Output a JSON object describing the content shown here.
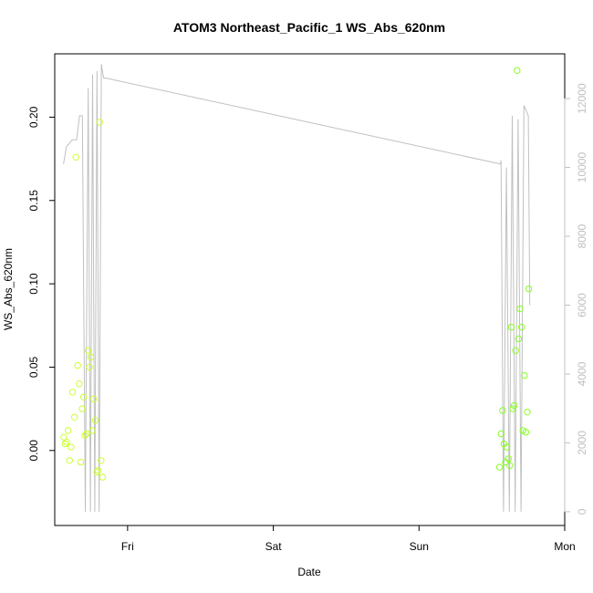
{
  "chart_data": {
    "type": "scatter",
    "title": "ATOM3 Northeast_Pacific_1 WS_Abs_620nm",
    "xlabel": "Date",
    "ylabel": "WS_Abs_620nm",
    "xlim": [
      0,
      3.5
    ],
    "ylim": [
      -0.045,
      0.238
    ],
    "x_ticks": [
      {
        "label": "Fri",
        "value": 0.5
      },
      {
        "label": "Sat",
        "value": 1.5
      },
      {
        "label": "Sun",
        "value": 2.5
      },
      {
        "label": "Mon",
        "value": 3.5
      }
    ],
    "y_ticks": [
      0.0,
      0.05,
      0.1,
      0.15,
      0.2
    ],
    "y_tick_labels": [
      "0.00",
      "0.05",
      "0.10",
      "0.15",
      "0.20"
    ],
    "y2_ticks": [
      0,
      2000,
      4000,
      6000,
      8000,
      10000,
      12000
    ],
    "y2lim": [
      -400,
      13300
    ],
    "grid": false,
    "colors": {
      "points_early": "#ccff33",
      "points_late": "#88ff22",
      "line": "#c0c0c0"
    },
    "series": [
      {
        "kind": "points",
        "x": [
          0.062,
          0.072,
          0.082,
          0.092,
          0.102,
          0.112,
          0.122,
          0.135,
          0.145,
          0.158,
          0.168,
          0.178,
          0.188,
          0.198,
          0.208,
          0.218,
          0.228,
          0.238,
          0.248,
          0.258,
          0.268,
          0.278,
          0.288,
          0.298,
          0.308,
          0.318,
          0.328
        ],
        "y": [
          0.008,
          0.004,
          0.005,
          0.012,
          -0.006,
          0.002,
          0.035,
          0.02,
          0.176,
          0.051,
          0.04,
          -0.007,
          0.025,
          0.032,
          0.009,
          0.01,
          0.06,
          0.05,
          0.056,
          0.012,
          0.031,
          0.018,
          -0.013,
          -0.012,
          0.197,
          -0.006,
          -0.016
        ]
      },
      {
        "kind": "points",
        "x": [
          3.053,
          3.063,
          3.073,
          3.083,
          3.093,
          3.103,
          3.113,
          3.123,
          3.133,
          3.143,
          3.153,
          3.163,
          3.173,
          3.183,
          3.193,
          3.203,
          3.213,
          3.223,
          3.233,
          3.243,
          3.253
        ],
        "y": [
          -0.01,
          0.01,
          0.024,
          0.004,
          -0.007,
          0.002,
          -0.005,
          -0.009,
          0.074,
          0.025,
          0.027,
          0.06,
          0.228,
          0.067,
          0.085,
          0.074,
          0.012,
          0.045,
          0.011,
          0.023,
          0.097
        ]
      },
      {
        "kind": "line",
        "axis": "right",
        "x": [
          0.06,
          0.08,
          0.12,
          0.15,
          0.17,
          0.19,
          0.21,
          0.23,
          0.245,
          0.26,
          0.275,
          0.29,
          0.305,
          0.32,
          0.335,
          0.345,
          3.06,
          3.063,
          3.08,
          3.1,
          3.12,
          3.14,
          3.16,
          3.18,
          3.2,
          3.22,
          3.25,
          3.26
        ],
        "y": [
          10100,
          10600,
          10800,
          10800,
          11500,
          11500,
          0,
          12300,
          0,
          12700,
          0,
          12800,
          0,
          13000,
          12600,
          12600,
          10100,
          10200,
          0,
          10000,
          0,
          11500,
          0,
          11400,
          0,
          11800,
          11500,
          6000
        ]
      }
    ]
  }
}
